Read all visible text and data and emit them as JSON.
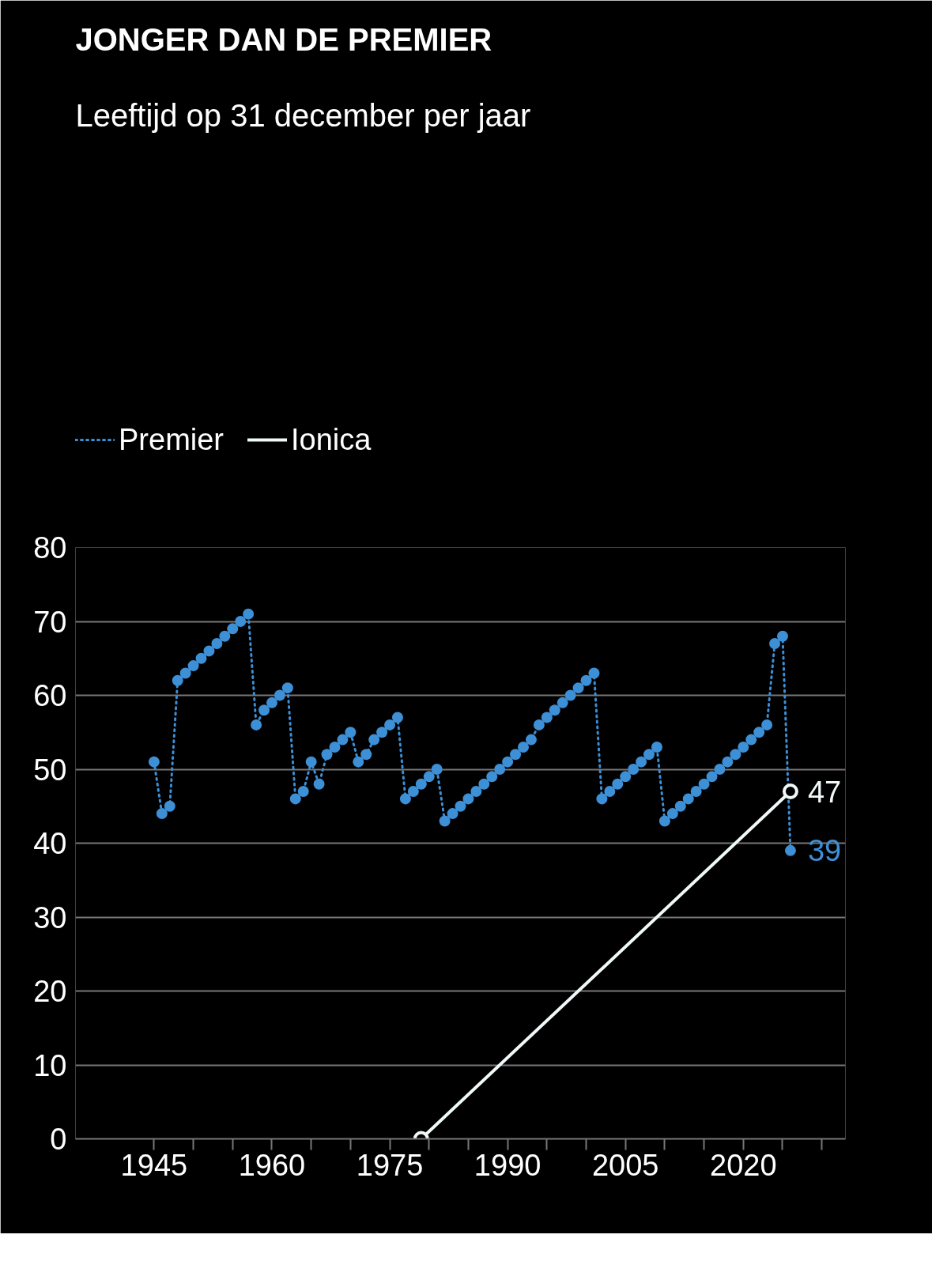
{
  "chart_data": {
    "type": "line",
    "title": "JONGER DAN DE PREMIER",
    "subtitle": "Leeftijd op 31 december per jaar",
    "xlim": [
      1935,
      2033
    ],
    "xticks": [
      1945,
      {
        "value": 1950,
        "label": null
      },
      {
        "value": 1955,
        "label": null
      },
      1960,
      {
        "value": 1965,
        "label": null
      },
      {
        "value": 1970,
        "label": null
      },
      1975,
      {
        "value": 1980,
        "label": null
      },
      {
        "value": 1985,
        "label": null
      },
      1990,
      {
        "value": 1995,
        "label": null
      },
      {
        "value": 2000,
        "label": null
      },
      2005,
      {
        "value": 2010,
        "label": null
      },
      {
        "value": 2015,
        "label": null
      },
      2020,
      {
        "value": 2025,
        "label": null
      },
      {
        "value": 2030,
        "label": null
      }
    ],
    "ylim": [
      0,
      80
    ],
    "yticks": [
      0,
      10,
      20,
      30,
      40,
      50,
      60,
      70,
      80
    ],
    "grid": "y",
    "legend": "top left",
    "series": [
      {
        "name": "Premier",
        "color": "#3d8fd6",
        "line_style": "dotted",
        "marker": "circle",
        "x": [
          1945,
          1946,
          1947,
          1948,
          1949,
          1950,
          1951,
          1952,
          1953,
          1954,
          1955,
          1956,
          1957,
          1958,
          1959,
          1960,
          1961,
          1962,
          1963,
          1964,
          1965,
          1966,
          1967,
          1968,
          1969,
          1970,
          1971,
          1972,
          1973,
          1974,
          1975,
          1976,
          1977,
          1978,
          1979,
          1980,
          1981,
          1982,
          1983,
          1984,
          1985,
          1986,
          1987,
          1988,
          1989,
          1990,
          1991,
          1992,
          1993,
          1994,
          1995,
          1996,
          1997,
          1998,
          1999,
          2000,
          2001,
          2002,
          2003,
          2004,
          2005,
          2006,
          2007,
          2008,
          2009,
          2010,
          2011,
          2012,
          2013,
          2014,
          2015,
          2016,
          2017,
          2018,
          2019,
          2020,
          2021,
          2022,
          2023,
          2024,
          2025,
          2026
        ],
        "values": [
          51,
          44,
          45,
          62,
          63,
          64,
          65,
          66,
          67,
          68,
          69,
          70,
          71,
          56,
          58,
          59,
          60,
          61,
          46,
          47,
          51,
          48,
          52,
          53,
          54,
          55,
          51,
          52,
          54,
          55,
          56,
          57,
          46,
          47,
          48,
          49,
          50,
          43,
          44,
          45,
          46,
          47,
          48,
          49,
          50,
          51,
          52,
          53,
          54,
          56,
          57,
          58,
          59,
          60,
          61,
          62,
          63,
          46,
          47,
          48,
          49,
          50,
          51,
          52,
          53,
          43,
          44,
          45,
          46,
          47,
          48,
          49,
          50,
          51,
          52,
          53,
          54,
          55,
          56,
          67,
          68,
          39
        ],
        "value_labels": [
          null,
          null,
          null,
          null,
          null,
          null,
          null,
          null,
          null,
          null,
          null,
          null,
          null,
          null,
          null,
          null,
          null,
          null,
          null,
          null,
          null,
          null,
          null,
          null,
          null,
          null,
          null,
          null,
          null,
          null,
          null,
          null,
          null,
          null,
          null,
          null,
          null,
          null,
          null,
          null,
          null,
          null,
          null,
          null,
          null,
          null,
          null,
          null,
          null,
          null,
          null,
          null,
          null,
          null,
          null,
          null,
          null,
          null,
          null,
          null,
          null,
          null,
          null,
          null,
          null,
          null,
          null,
          null,
          null,
          null,
          null,
          null,
          null,
          null,
          null,
          null,
          null,
          null,
          null,
          null,
          null,
          "39"
        ]
      },
      {
        "name": "Ionica",
        "color": "#f0f8f8",
        "line_style": "solid",
        "marker": "circle",
        "x": [
          1979,
          2026
        ],
        "values": [
          0,
          47
        ],
        "value_labels": [
          null,
          "47"
        ]
      }
    ]
  }
}
